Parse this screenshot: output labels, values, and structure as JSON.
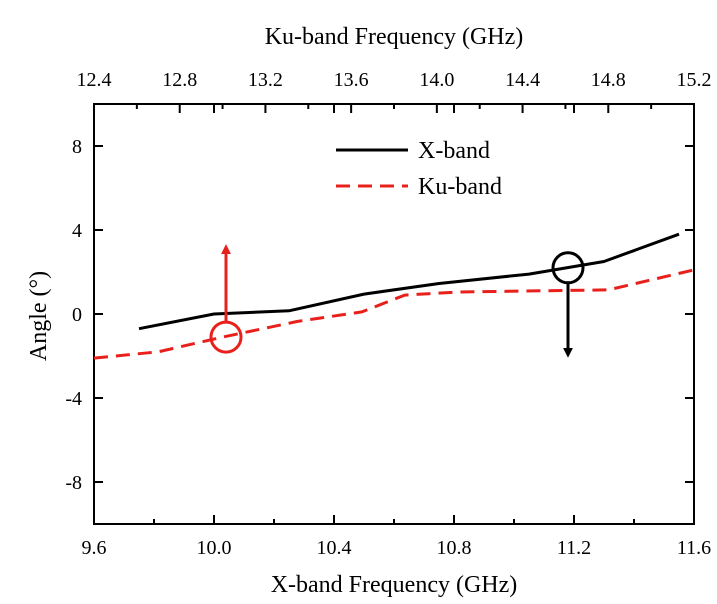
{
  "chart_data": {
    "type": "line",
    "xlabel": "X-band Frequency (GHz)",
    "x2label": "Ku-band Frequency (GHz)",
    "ylabel": "Angle (°)",
    "xlim": [
      9.6,
      11.6
    ],
    "x2lim": [
      12.4,
      15.2
    ],
    "ylim": [
      -10,
      10
    ],
    "xticks": [
      "9.6",
      "10.0",
      "10.4",
      "10.8",
      "11.2",
      "11.6"
    ],
    "x2ticks": [
      "12.4",
      "12.8",
      "13.2",
      "13.6",
      "14.0",
      "14.4",
      "14.8",
      "15.2"
    ],
    "yticks": [
      "8",
      "4",
      "0",
      "-4",
      "-8"
    ],
    "grid": false,
    "legend": "top-center",
    "series": [
      {
        "name": "X-band",
        "axis": "bottom",
        "color": "#000000",
        "style": "solid",
        "x": [
          9.75,
          10.0,
          10.25,
          10.5,
          10.75,
          11.05,
          11.3,
          11.55
        ],
        "y": [
          -0.7,
          0.0,
          0.15,
          0.95,
          1.45,
          1.9,
          2.5,
          3.8
        ]
      },
      {
        "name": "Ku-band",
        "axis": "top",
        "color": "#e8201c",
        "style": "dashed",
        "x": [
          12.4,
          12.7,
          13.0,
          13.35,
          13.65,
          13.85,
          14.1,
          14.45,
          14.8,
          15.2
        ],
        "y": [
          -2.1,
          -1.8,
          -1.1,
          -0.35,
          0.1,
          0.9,
          1.05,
          1.1,
          1.15,
          2.1
        ]
      }
    ],
    "annotations": [
      {
        "series": "X-band",
        "x": 11.18,
        "y": 2.2,
        "arrow": "down",
        "color": "#000000"
      },
      {
        "series": "Ku-band",
        "x": 10.04,
        "y": -1.1,
        "arrow": "up",
        "color": "#e8201c"
      }
    ]
  }
}
